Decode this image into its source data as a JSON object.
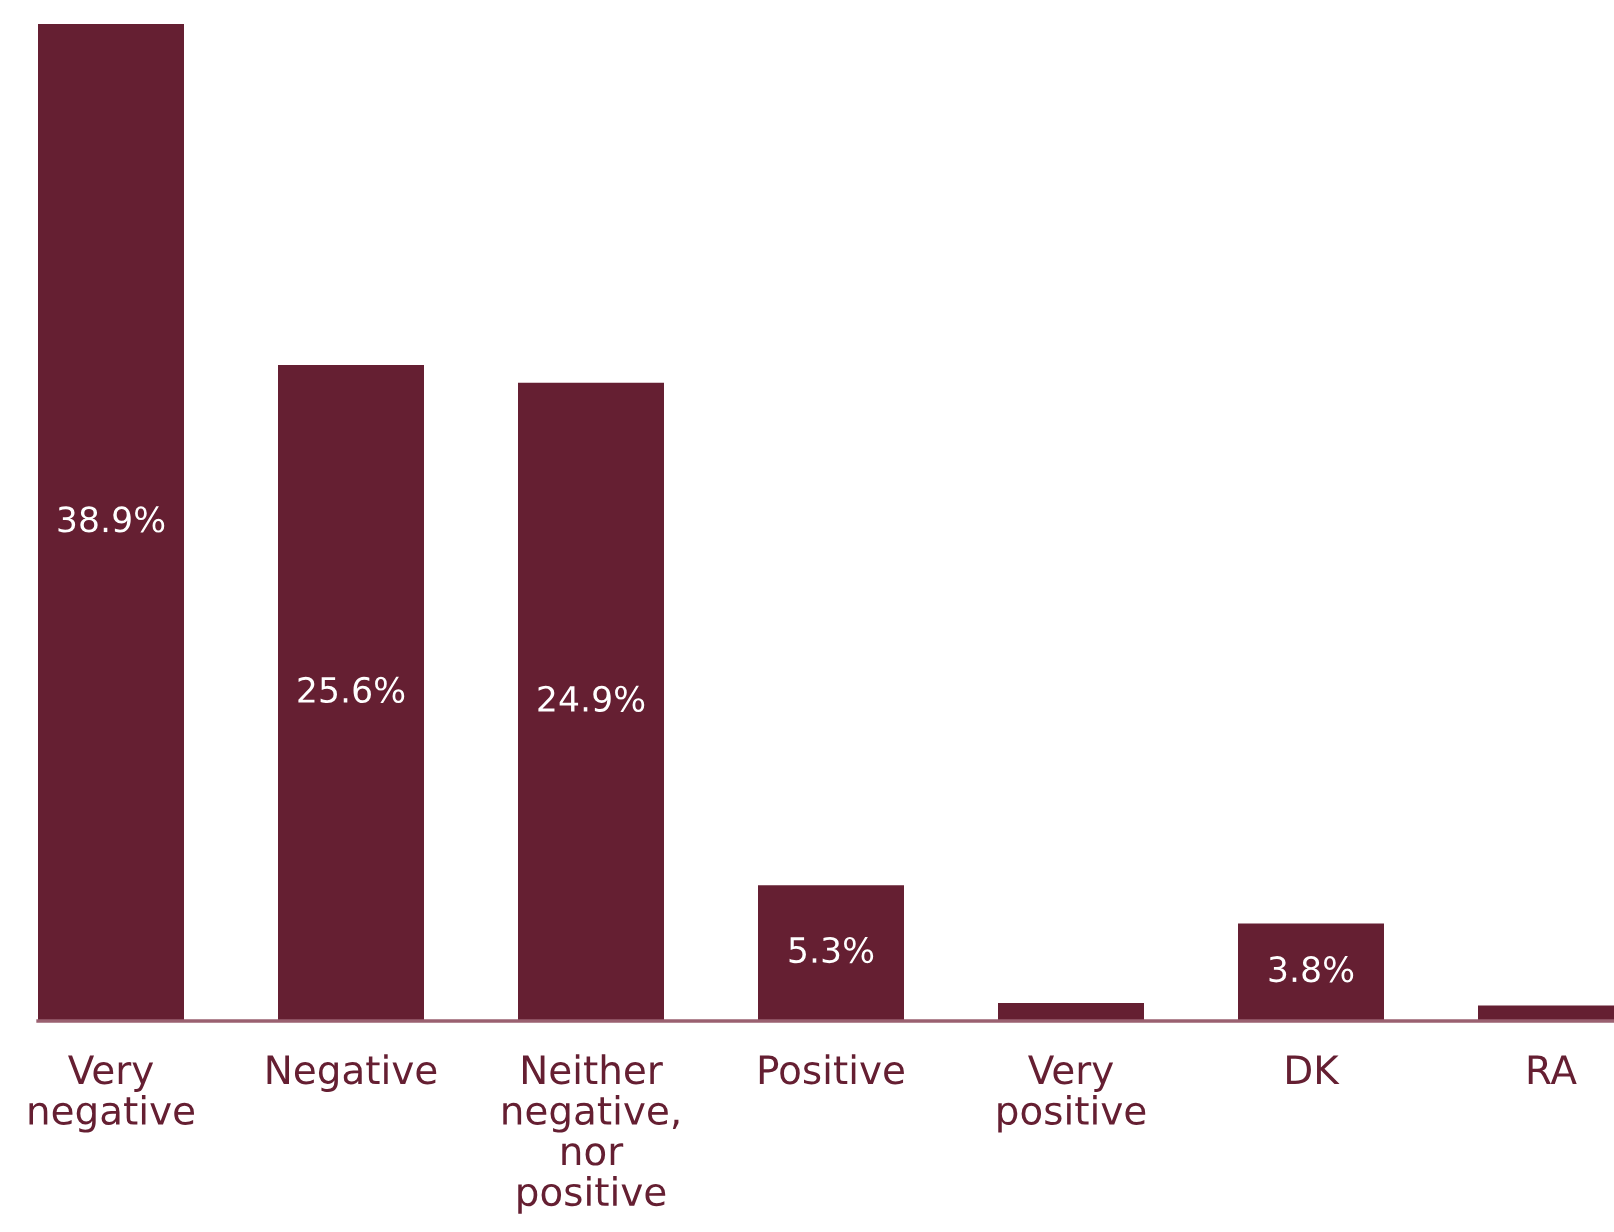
{
  "chart_data": {
    "type": "bar",
    "categories": [
      "Very negative",
      "Negative",
      "Neither negative, nor positive",
      "Positive",
      "Very positive",
      "DK",
      "RA"
    ],
    "values": [
      38.9,
      25.6,
      24.9,
      5.3,
      0.7,
      3.8,
      0.6
    ],
    "value_labels": [
      "38.9%",
      "25.6%",
      "24.9%",
      "5.3%",
      null,
      "3.8%",
      null
    ],
    "color": "#651f32",
    "tick_labels": "x"
  }
}
